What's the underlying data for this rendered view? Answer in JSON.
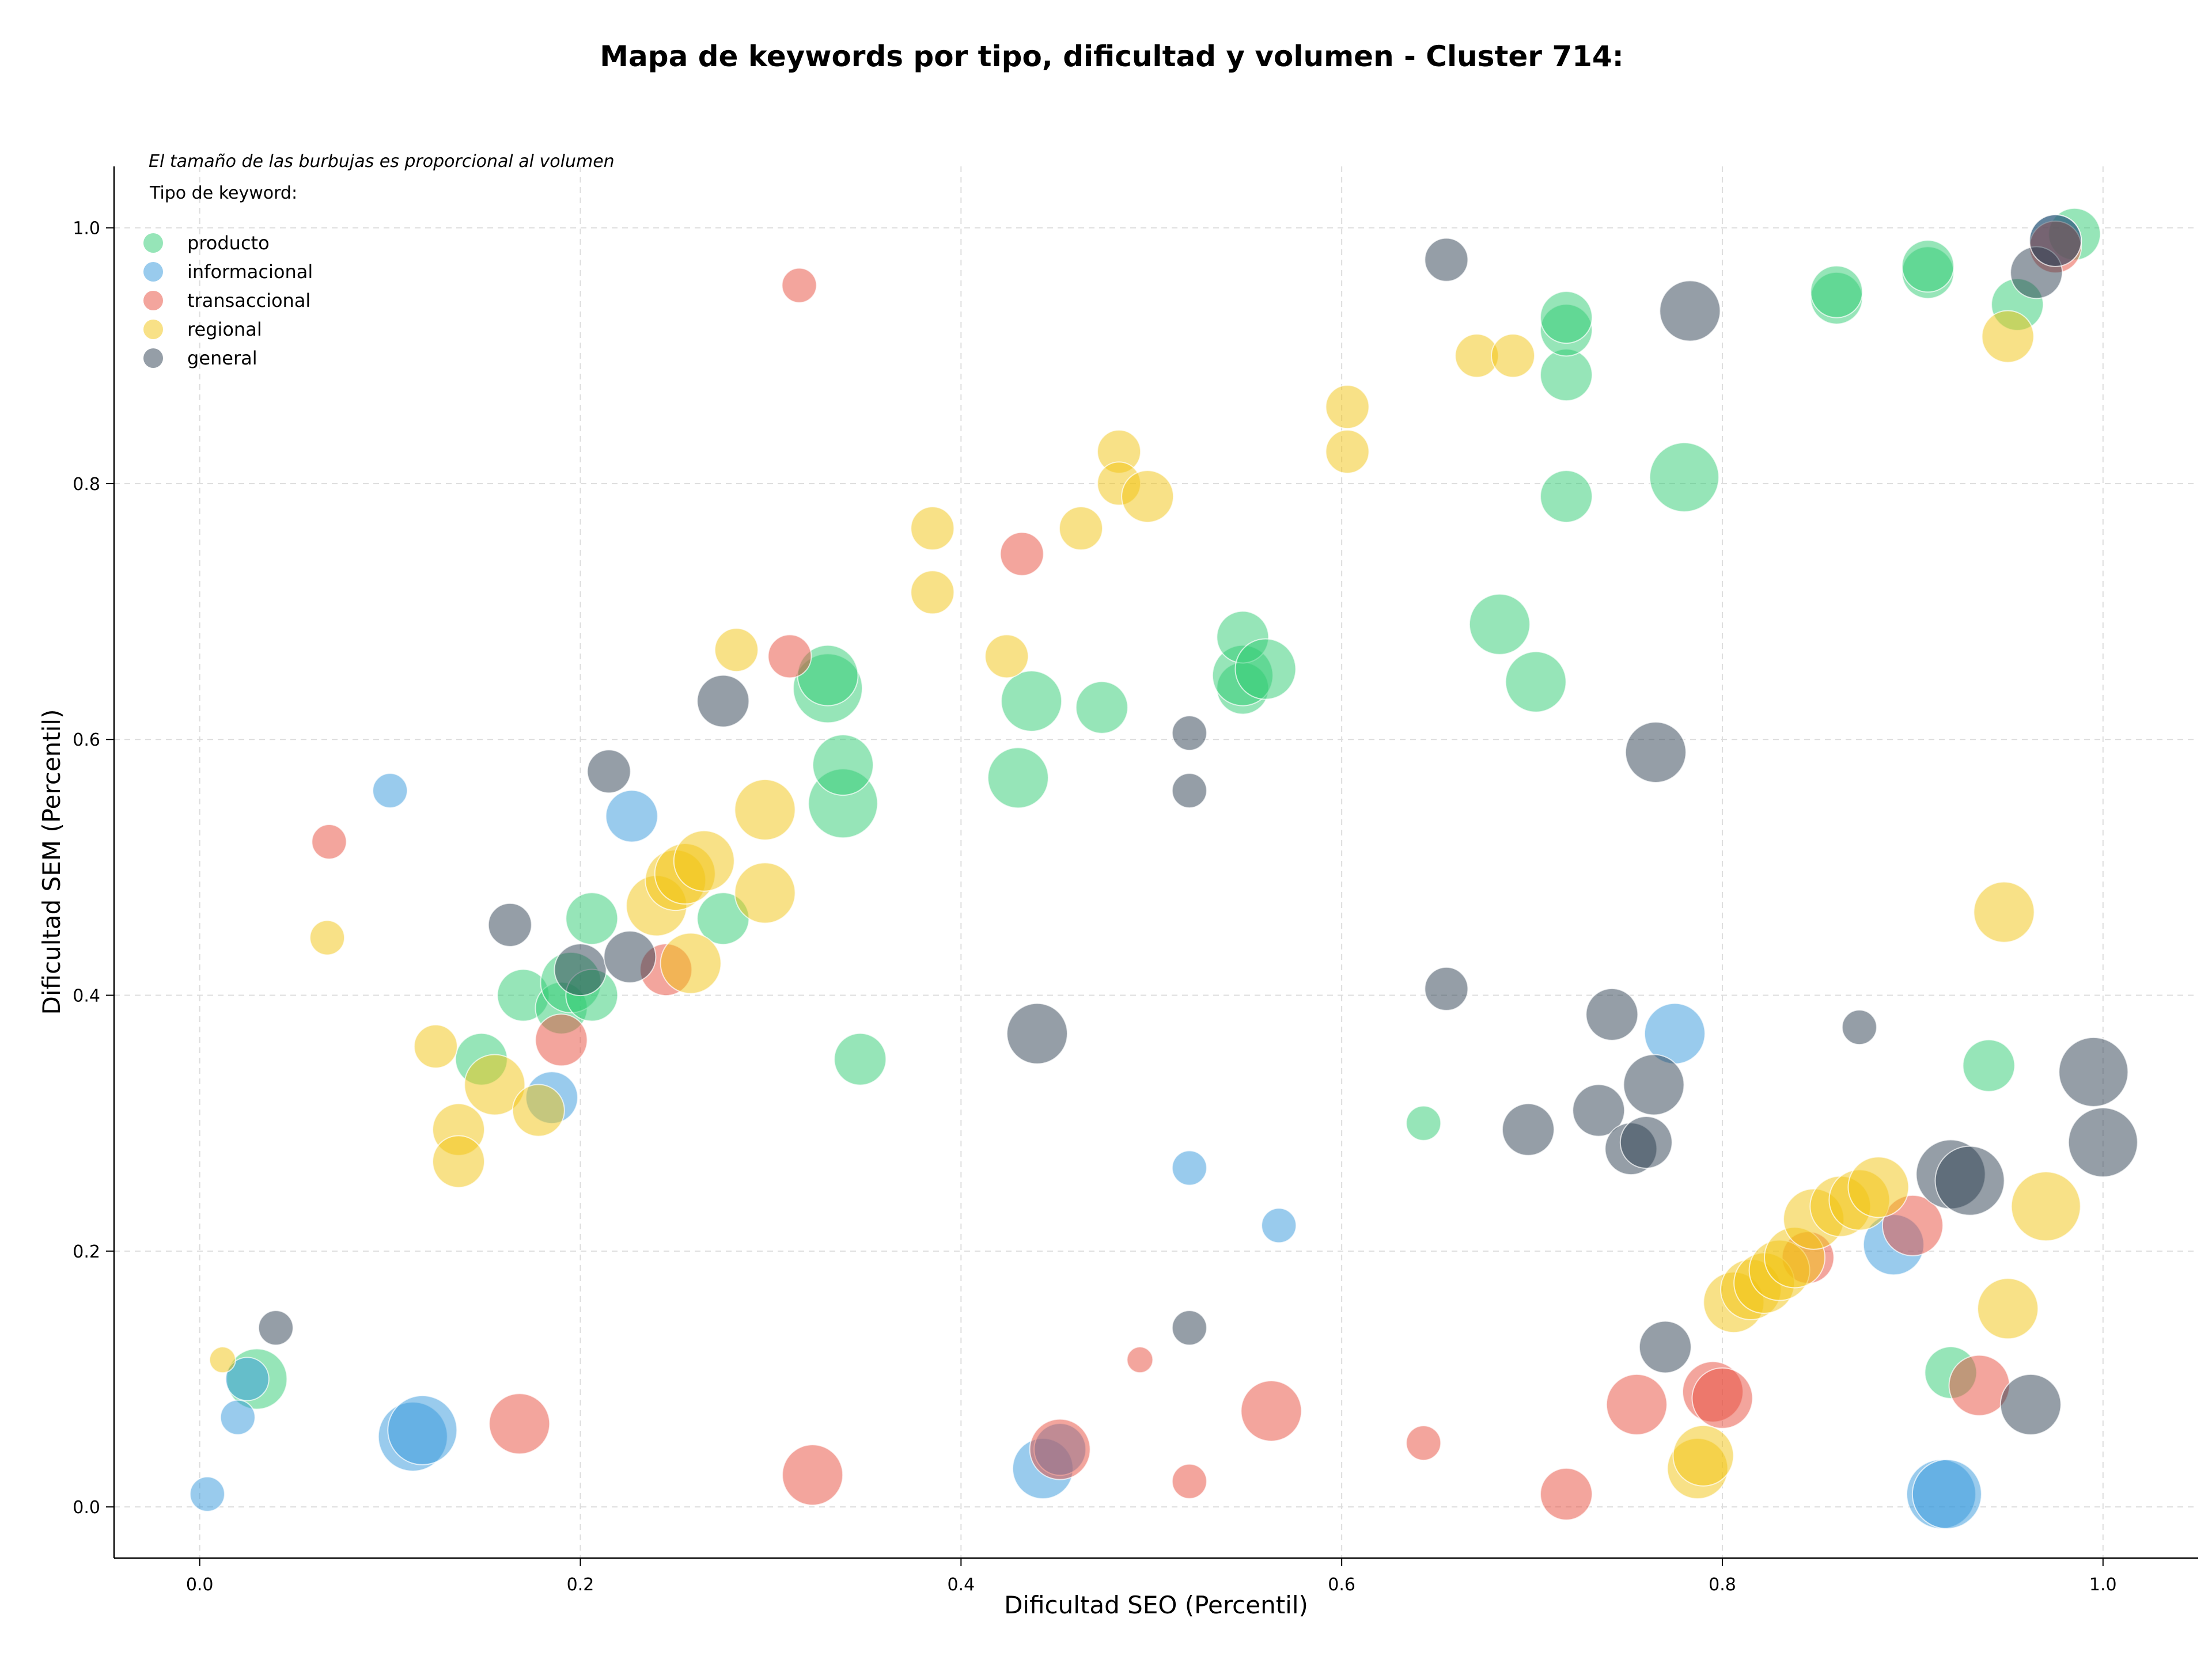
{
  "chart_data": {
    "type": "scatter",
    "title": "Mapa de keywords por tipo, dificultad y volumen - Cluster 714:",
    "xlabel": "Dificultad SEO (Percentil)",
    "ylabel": "Dificultad SEM (Percentil)",
    "xlim": [
      -0.045,
      1.05
    ],
    "ylim": [
      -0.04,
      1.048
    ],
    "xticks": [
      0.0,
      0.2,
      0.4,
      0.6,
      0.8,
      1.0
    ],
    "yticks": [
      0.0,
      0.2,
      0.4,
      0.6,
      0.8,
      1.0
    ],
    "tick_labels_x": [
      "0.0",
      "0.2",
      "0.4",
      "0.6",
      "0.8",
      "1.0"
    ],
    "tick_labels_y": [
      "0.0",
      "0.2",
      "0.4",
      "0.6",
      "0.8",
      "1.0"
    ],
    "grid": true,
    "legend": {
      "placement": "top-left",
      "note": "El tamaño de las burbujas es proporcional al volumen",
      "title": "Tipo de keyword:"
    },
    "series": [
      {
        "name": "producto",
        "color": "#2ecc71",
        "points": [
          {
            "x": 0.03,
            "y": 0.1,
            "s": 7
          },
          {
            "x": 0.148,
            "y": 0.35,
            "s": 6
          },
          {
            "x": 0.17,
            "y": 0.4,
            "s": 6
          },
          {
            "x": 0.19,
            "y": 0.39,
            "s": 6
          },
          {
            "x": 0.195,
            "y": 0.41,
            "s": 7
          },
          {
            "x": 0.206,
            "y": 0.4,
            "s": 6
          },
          {
            "x": 0.206,
            "y": 0.46,
            "s": 6
          },
          {
            "x": 0.275,
            "y": 0.46,
            "s": 6
          },
          {
            "x": 0.33,
            "y": 0.64,
            "s": 8
          },
          {
            "x": 0.33,
            "y": 0.65,
            "s": 7
          },
          {
            "x": 0.338,
            "y": 0.55,
            "s": 8
          },
          {
            "x": 0.338,
            "y": 0.58,
            "s": 7
          },
          {
            "x": 0.347,
            "y": 0.35,
            "s": 6
          },
          {
            "x": 0.43,
            "y": 0.57,
            "s": 7
          },
          {
            "x": 0.437,
            "y": 0.63,
            "s": 7
          },
          {
            "x": 0.474,
            "y": 0.625,
            "s": 6
          },
          {
            "x": 0.548,
            "y": 0.64,
            "s": 6
          },
          {
            "x": 0.548,
            "y": 0.65,
            "s": 7
          },
          {
            "x": 0.548,
            "y": 0.68,
            "s": 6
          },
          {
            "x": 0.56,
            "y": 0.655,
            "s": 7
          },
          {
            "x": 0.643,
            "y": 0.3,
            "s": 4
          },
          {
            "x": 0.683,
            "y": 0.69,
            "s": 7
          },
          {
            "x": 0.702,
            "y": 0.645,
            "s": 7
          },
          {
            "x": 0.718,
            "y": 0.79,
            "s": 6
          },
          {
            "x": 0.718,
            "y": 0.885,
            "s": 6
          },
          {
            "x": 0.718,
            "y": 0.92,
            "s": 6
          },
          {
            "x": 0.718,
            "y": 0.93,
            "s": 6
          },
          {
            "x": 0.78,
            "y": 0.805,
            "s": 8
          },
          {
            "x": 0.86,
            "y": 0.945,
            "s": 6
          },
          {
            "x": 0.86,
            "y": 0.95,
            "s": 6
          },
          {
            "x": 0.908,
            "y": 0.965,
            "s": 6
          },
          {
            "x": 0.908,
            "y": 0.97,
            "s": 6
          },
          {
            "x": 0.92,
            "y": 0.105,
            "s": 6
          },
          {
            "x": 0.94,
            "y": 0.345,
            "s": 6
          },
          {
            "x": 0.955,
            "y": 0.94,
            "s": 6
          },
          {
            "x": 0.985,
            "y": 0.995,
            "s": 6
          }
        ]
      },
      {
        "name": "informacional",
        "color": "#3498db",
        "points": [
          {
            "x": 0.004,
            "y": 0.01,
            "s": 4
          },
          {
            "x": 0.02,
            "y": 0.07,
            "s": 4
          },
          {
            "x": 0.025,
            "y": 0.1,
            "s": 5
          },
          {
            "x": 0.1,
            "y": 0.56,
            "s": 4
          },
          {
            "x": 0.112,
            "y": 0.055,
            "s": 8
          },
          {
            "x": 0.117,
            "y": 0.06,
            "s": 8
          },
          {
            "x": 0.185,
            "y": 0.32,
            "s": 6
          },
          {
            "x": 0.227,
            "y": 0.54,
            "s": 6
          },
          {
            "x": 0.443,
            "y": 0.03,
            "s": 7
          },
          {
            "x": 0.452,
            "y": 0.045,
            "s": 6
          },
          {
            "x": 0.52,
            "y": 0.265,
            "s": 4
          },
          {
            "x": 0.567,
            "y": 0.22,
            "s": 4
          },
          {
            "x": 0.775,
            "y": 0.37,
            "s": 7
          },
          {
            "x": 0.89,
            "y": 0.205,
            "s": 7
          },
          {
            "x": 0.915,
            "y": 0.01,
            "s": 8
          },
          {
            "x": 0.918,
            "y": 0.01,
            "s": 8
          },
          {
            "x": 0.975,
            "y": 0.99,
            "s": 6
          }
        ]
      },
      {
        "name": "transaccional",
        "color": "#e74c3c",
        "points": [
          {
            "x": 0.068,
            "y": 0.52,
            "s": 4
          },
          {
            "x": 0.168,
            "y": 0.065,
            "s": 7
          },
          {
            "x": 0.19,
            "y": 0.365,
            "s": 6
          },
          {
            "x": 0.245,
            "y": 0.42,
            "s": 6
          },
          {
            "x": 0.31,
            "y": 0.665,
            "s": 5
          },
          {
            "x": 0.315,
            "y": 0.955,
            "s": 4
          },
          {
            "x": 0.322,
            "y": 0.025,
            "s": 7
          },
          {
            "x": 0.432,
            "y": 0.745,
            "s": 5
          },
          {
            "x": 0.452,
            "y": 0.045,
            "s": 7
          },
          {
            "x": 0.494,
            "y": 0.115,
            "s": 3
          },
          {
            "x": 0.52,
            "y": 0.02,
            "s": 4
          },
          {
            "x": 0.563,
            "y": 0.075,
            "s": 7
          },
          {
            "x": 0.643,
            "y": 0.05,
            "s": 4
          },
          {
            "x": 0.718,
            "y": 0.01,
            "s": 6
          },
          {
            "x": 0.755,
            "y": 0.08,
            "s": 7
          },
          {
            "x": 0.795,
            "y": 0.09,
            "s": 7
          },
          {
            "x": 0.8,
            "y": 0.085,
            "s": 7
          },
          {
            "x": 0.845,
            "y": 0.195,
            "s": 6
          },
          {
            "x": 0.9,
            "y": 0.22,
            "s": 7
          },
          {
            "x": 0.935,
            "y": 0.095,
            "s": 7
          },
          {
            "x": 0.975,
            "y": 0.985,
            "s": 6
          }
        ]
      },
      {
        "name": "regional",
        "color": "#f1c40f",
        "points": [
          {
            "x": 0.012,
            "y": 0.115,
            "s": 3
          },
          {
            "x": 0.067,
            "y": 0.445,
            "s": 4
          },
          {
            "x": 0.124,
            "y": 0.36,
            "s": 5
          },
          {
            "x": 0.136,
            "y": 0.295,
            "s": 6
          },
          {
            "x": 0.136,
            "y": 0.27,
            "s": 6
          },
          {
            "x": 0.155,
            "y": 0.33,
            "s": 7
          },
          {
            "x": 0.178,
            "y": 0.31,
            "s": 6
          },
          {
            "x": 0.24,
            "y": 0.47,
            "s": 7
          },
          {
            "x": 0.25,
            "y": 0.49,
            "s": 7
          },
          {
            "x": 0.255,
            "y": 0.495,
            "s": 7
          },
          {
            "x": 0.258,
            "y": 0.425,
            "s": 7
          },
          {
            "x": 0.265,
            "y": 0.505,
            "s": 7
          },
          {
            "x": 0.282,
            "y": 0.67,
            "s": 5
          },
          {
            "x": 0.297,
            "y": 0.545,
            "s": 7
          },
          {
            "x": 0.297,
            "y": 0.48,
            "s": 7
          },
          {
            "x": 0.385,
            "y": 0.765,
            "s": 5
          },
          {
            "x": 0.385,
            "y": 0.715,
            "s": 5
          },
          {
            "x": 0.424,
            "y": 0.665,
            "s": 5
          },
          {
            "x": 0.463,
            "y": 0.765,
            "s": 5
          },
          {
            "x": 0.483,
            "y": 0.825,
            "s": 5
          },
          {
            "x": 0.483,
            "y": 0.8,
            "s": 5
          },
          {
            "x": 0.498,
            "y": 0.79,
            "s": 6
          },
          {
            "x": 0.603,
            "y": 0.86,
            "s": 5
          },
          {
            "x": 0.603,
            "y": 0.825,
            "s": 5
          },
          {
            "x": 0.671,
            "y": 0.9,
            "s": 5
          },
          {
            "x": 0.69,
            "y": 0.9,
            "s": 5
          },
          {
            "x": 0.787,
            "y": 0.03,
            "s": 7
          },
          {
            "x": 0.79,
            "y": 0.04,
            "s": 7
          },
          {
            "x": 0.806,
            "y": 0.16,
            "s": 7
          },
          {
            "x": 0.815,
            "y": 0.17,
            "s": 7
          },
          {
            "x": 0.822,
            "y": 0.175,
            "s": 7
          },
          {
            "x": 0.83,
            "y": 0.185,
            "s": 7
          },
          {
            "x": 0.838,
            "y": 0.195,
            "s": 7
          },
          {
            "x": 0.848,
            "y": 0.225,
            "s": 7
          },
          {
            "x": 0.862,
            "y": 0.235,
            "s": 7
          },
          {
            "x": 0.872,
            "y": 0.24,
            "s": 7
          },
          {
            "x": 0.882,
            "y": 0.25,
            "s": 7
          },
          {
            "x": 0.948,
            "y": 0.465,
            "s": 7
          },
          {
            "x": 0.95,
            "y": 0.155,
            "s": 7
          },
          {
            "x": 0.95,
            "y": 0.915,
            "s": 6
          },
          {
            "x": 0.97,
            "y": 0.235,
            "s": 8
          }
        ]
      },
      {
        "name": "general",
        "color": "#2c3e50",
        "points": [
          {
            "x": 0.04,
            "y": 0.14,
            "s": 4
          },
          {
            "x": 0.163,
            "y": 0.455,
            "s": 5
          },
          {
            "x": 0.2,
            "y": 0.42,
            "s": 6
          },
          {
            "x": 0.215,
            "y": 0.575,
            "s": 5
          },
          {
            "x": 0.226,
            "y": 0.43,
            "s": 6
          },
          {
            "x": 0.275,
            "y": 0.63,
            "s": 6
          },
          {
            "x": 0.44,
            "y": 0.37,
            "s": 7
          },
          {
            "x": 0.52,
            "y": 0.605,
            "s": 4
          },
          {
            "x": 0.52,
            "y": 0.56,
            "s": 4
          },
          {
            "x": 0.52,
            "y": 0.14,
            "s": 4
          },
          {
            "x": 0.655,
            "y": 0.975,
            "s": 5
          },
          {
            "x": 0.655,
            "y": 0.405,
            "s": 5
          },
          {
            "x": 0.698,
            "y": 0.295,
            "s": 6
          },
          {
            "x": 0.735,
            "y": 0.31,
            "s": 6
          },
          {
            "x": 0.742,
            "y": 0.385,
            "s": 6
          },
          {
            "x": 0.752,
            "y": 0.28,
            "s": 6
          },
          {
            "x": 0.76,
            "y": 0.285,
            "s": 6
          },
          {
            "x": 0.765,
            "y": 0.59,
            "s": 7
          },
          {
            "x": 0.764,
            "y": 0.33,
            "s": 7
          },
          {
            "x": 0.77,
            "y": 0.125,
            "s": 6
          },
          {
            "x": 0.783,
            "y": 0.935,
            "s": 7
          },
          {
            "x": 0.872,
            "y": 0.375,
            "s": 4
          },
          {
            "x": 0.92,
            "y": 0.26,
            "s": 8
          },
          {
            "x": 0.93,
            "y": 0.255,
            "s": 8
          },
          {
            "x": 0.962,
            "y": 0.08,
            "s": 7
          },
          {
            "x": 0.965,
            "y": 0.965,
            "s": 6
          },
          {
            "x": 0.975,
            "y": 0.99,
            "s": 6
          },
          {
            "x": 0.995,
            "y": 0.34,
            "s": 8
          },
          {
            "x": 1.0,
            "y": 0.285,
            "s": 8
          }
        ]
      }
    ]
  }
}
